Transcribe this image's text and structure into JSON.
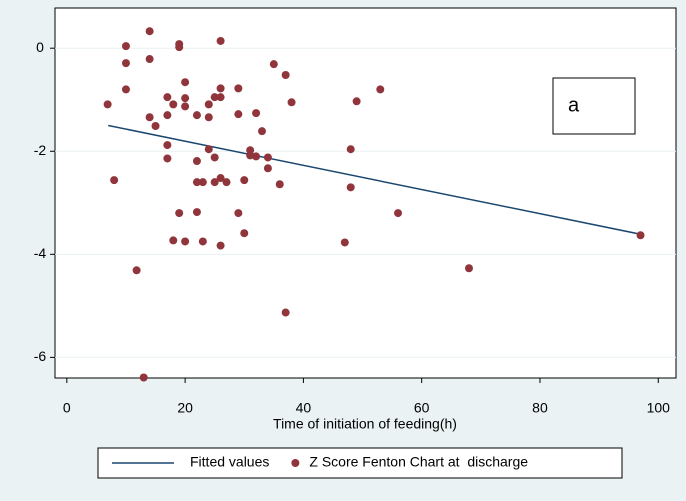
{
  "chart_data": {
    "type": "scatter",
    "xlabel": "Time of initiation of feeding(h)",
    "xlim": [
      -2,
      103
    ],
    "xticks": [
      0,
      20,
      40,
      60,
      80,
      100
    ],
    "ylim": [
      -6.4,
      0.78
    ],
    "yticks": [
      0,
      -2,
      -4,
      -6
    ],
    "grid": true,
    "annotations": [
      "a"
    ],
    "series": [
      {
        "name": "Fitted values",
        "type": "line",
        "color": "#1a476f",
        "x": [
          7,
          97
        ],
        "values": [
          -1.5,
          -3.61
        ]
      },
      {
        "name": "Z Score Fenton Chart at  discharge",
        "type": "scatter",
        "color": "#90353b",
        "x": [
          6.9,
          8,
          10,
          10,
          10,
          11.8,
          13,
          14,
          14,
          14,
          15,
          17,
          17,
          17,
          17,
          18,
          18,
          19,
          19,
          19,
          20,
          20,
          20,
          20,
          22,
          22,
          22,
          22,
          23,
          23,
          24,
          24,
          24,
          25,
          25,
          25,
          26,
          26,
          26,
          26,
          26,
          27,
          29,
          29,
          29,
          30,
          30,
          31,
          31,
          32,
          32,
          33,
          34,
          34,
          35,
          36,
          37,
          37,
          38,
          47,
          48,
          48,
          49,
          53,
          56,
          68,
          97
        ],
        "values": [
          -1.09,
          -2.56,
          0.04,
          -0.29,
          -0.8,
          -4.31,
          -6.39,
          0.33,
          -0.21,
          -1.34,
          -1.51,
          -0.95,
          -1.3,
          -1.88,
          -2.14,
          -1.09,
          -3.73,
          0.08,
          0.02,
          -3.2,
          -0.66,
          -0.97,
          -1.13,
          -3.75,
          -1.3,
          -2.19,
          -2.6,
          -3.18,
          -2.6,
          -3.75,
          -1.09,
          -1.34,
          -1.96,
          -0.95,
          -2.12,
          -2.6,
          0.14,
          -0.78,
          -0.95,
          -2.52,
          -3.83,
          -2.6,
          -0.78,
          -1.28,
          -3.2,
          -2.56,
          -3.59,
          -1.98,
          -2.08,
          -1.26,
          -2.1,
          -1.61,
          -2.12,
          -2.33,
          -0.31,
          -2.64,
          -0.52,
          -5.13,
          -1.05,
          -3.77,
          -1.96,
          -2.7,
          -1.03,
          -0.8,
          -3.2,
          -4.27,
          -3.63
        ]
      }
    ]
  }
}
